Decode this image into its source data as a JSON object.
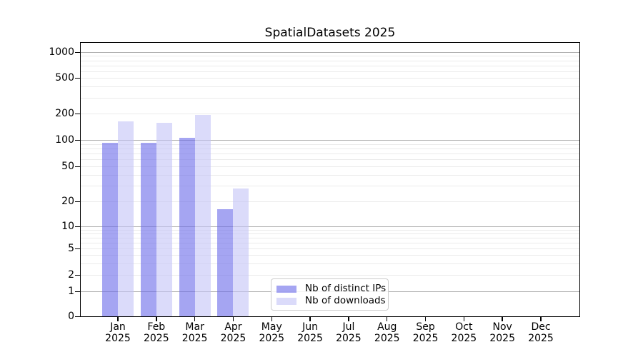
{
  "title": "SpatialDatasets 2025",
  "chart_data": {
    "type": "bar",
    "title": "SpatialDatasets 2025",
    "categories": [
      "Jan 2025",
      "Feb 2025",
      "Mar 2025",
      "Apr 2025",
      "May 2025",
      "Jun 2025",
      "Jul 2025",
      "Aug 2025",
      "Sep 2025",
      "Oct 2025",
      "Nov 2025",
      "Dec 2025"
    ],
    "series": [
      {
        "name": "Nb of distinct IPs",
        "color": "#6969E9",
        "opacity": 0.6,
        "values": [
          93,
          93,
          105,
          16,
          0,
          0,
          0,
          0,
          0,
          0,
          0,
          0
        ]
      },
      {
        "name": "Nb of downloads",
        "color": "#C3C3F7",
        "opacity": 0.6,
        "values": [
          163,
          157,
          193,
          28,
          0,
          0,
          0,
          0,
          0,
          0,
          0,
          0
        ]
      }
    ],
    "xlabel": "",
    "ylabel": "",
    "yscale": "symlog",
    "ytick_labels": [
      0,
      1,
      2,
      5,
      10,
      20,
      50,
      100,
      200,
      500,
      1000
    ],
    "minor_ticks": [
      3,
      4,
      6,
      7,
      8,
      9,
      30,
      40,
      60,
      70,
      80,
      90,
      300,
      400,
      600,
      700,
      800,
      900
    ],
    "major_grid_ticks": [
      1,
      10,
      100,
      1000
    ],
    "ylim": [
      0,
      1300
    ],
    "grid": true,
    "legend_position": "inside-bottom-left-of-center",
    "colors": {
      "major_grid": "#b0b0b0",
      "minor_grid": "#ebebeb",
      "axis": "#000000",
      "legend_border": "#cccccc"
    }
  }
}
